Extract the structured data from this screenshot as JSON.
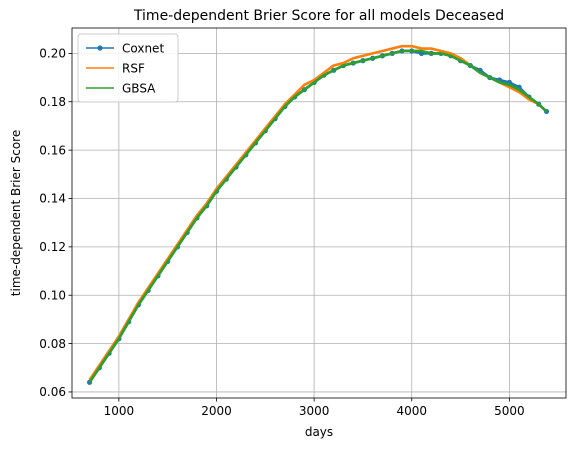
{
  "chart_data": {
    "type": "line",
    "title": "Time-dependent Brier Score for all models Deceased",
    "xlabel": "days",
    "ylabel": "time-dependent Brier Score",
    "xlim": [
      520,
      5580
    ],
    "ylim": [
      0.0575,
      0.2105
    ],
    "xticks": [
      1000,
      2000,
      3000,
      4000,
      5000
    ],
    "yticks": [
      0.06,
      0.08,
      0.1,
      0.12,
      0.14,
      0.16,
      0.18,
      0.2
    ],
    "ytick_labels": [
      "0.06",
      "0.08",
      "0.10",
      "0.12",
      "0.14",
      "0.16",
      "0.18",
      "0.20"
    ],
    "grid": true,
    "legend_position": "upper-left",
    "series": [
      {
        "name": "Coxnet",
        "color": "#1f77b4",
        "marker": "circle",
        "x": [
          700,
          800,
          900,
          1000,
          1100,
          1200,
          1300,
          1400,
          1500,
          1600,
          1700,
          1800,
          1900,
          2000,
          2100,
          2200,
          2300,
          2400,
          2500,
          2600,
          2700,
          2800,
          2900,
          3000,
          3100,
          3200,
          3300,
          3400,
          3500,
          3600,
          3700,
          3800,
          3900,
          4000,
          4100,
          4200,
          4300,
          4400,
          4500,
          4600,
          4700,
          4800,
          4900,
          5000,
          5100,
          5200,
          5300,
          5380
        ],
        "y": [
          0.064,
          0.07,
          0.076,
          0.082,
          0.089,
          0.096,
          0.102,
          0.108,
          0.114,
          0.12,
          0.126,
          0.132,
          0.137,
          0.143,
          0.148,
          0.153,
          0.158,
          0.163,
          0.168,
          0.173,
          0.178,
          0.182,
          0.185,
          0.188,
          0.191,
          0.193,
          0.195,
          0.196,
          0.197,
          0.198,
          0.199,
          0.2,
          0.201,
          0.201,
          0.2,
          0.2,
          0.2,
          0.199,
          0.197,
          0.195,
          0.193,
          0.19,
          0.189,
          0.188,
          0.186,
          0.182,
          0.179,
          0.176
        ]
      },
      {
        "name": "RSF",
        "color": "#ff7f0e",
        "marker": "none",
        "x": [
          700,
          800,
          900,
          1000,
          1100,
          1200,
          1300,
          1400,
          1500,
          1600,
          1700,
          1800,
          1900,
          2000,
          2100,
          2200,
          2300,
          2400,
          2500,
          2600,
          2700,
          2800,
          2900,
          3000,
          3100,
          3200,
          3300,
          3400,
          3500,
          3600,
          3700,
          3800,
          3900,
          4000,
          4100,
          4200,
          4300,
          4400,
          4500,
          4600,
          4700,
          4800,
          4900,
          5000,
          5100,
          5200,
          5300,
          5380
        ],
        "y": [
          0.065,
          0.071,
          0.077,
          0.083,
          0.09,
          0.097,
          0.103,
          0.109,
          0.115,
          0.121,
          0.127,
          0.133,
          0.138,
          0.144,
          0.149,
          0.154,
          0.159,
          0.164,
          0.169,
          0.174,
          0.179,
          0.183,
          0.187,
          0.189,
          0.192,
          0.195,
          0.196,
          0.198,
          0.199,
          0.2,
          0.201,
          0.202,
          0.203,
          0.203,
          0.202,
          0.202,
          0.201,
          0.2,
          0.198,
          0.195,
          0.192,
          0.19,
          0.188,
          0.186,
          0.184,
          0.181,
          0.179,
          0.176
        ]
      },
      {
        "name": "GBSA",
        "color": "#2ca02c",
        "marker": "none",
        "x": [
          700,
          800,
          900,
          1000,
          1100,
          1200,
          1300,
          1400,
          1500,
          1600,
          1700,
          1800,
          1900,
          2000,
          2100,
          2200,
          2300,
          2400,
          2500,
          2600,
          2700,
          2800,
          2900,
          3000,
          3100,
          3200,
          3300,
          3400,
          3500,
          3600,
          3700,
          3800,
          3900,
          4000,
          4100,
          4200,
          4300,
          4400,
          4500,
          4600,
          4700,
          4800,
          4900,
          5000,
          5100,
          5200,
          5300,
          5380
        ],
        "y": [
          0.064,
          0.07,
          0.076,
          0.082,
          0.089,
          0.096,
          0.102,
          0.108,
          0.114,
          0.12,
          0.126,
          0.132,
          0.137,
          0.143,
          0.148,
          0.153,
          0.158,
          0.163,
          0.168,
          0.173,
          0.178,
          0.182,
          0.185,
          0.188,
          0.191,
          0.193,
          0.195,
          0.196,
          0.197,
          0.198,
          0.199,
          0.2,
          0.201,
          0.201,
          0.201,
          0.2,
          0.2,
          0.199,
          0.197,
          0.195,
          0.192,
          0.19,
          0.188,
          0.187,
          0.185,
          0.182,
          0.179,
          0.176
        ]
      }
    ]
  }
}
